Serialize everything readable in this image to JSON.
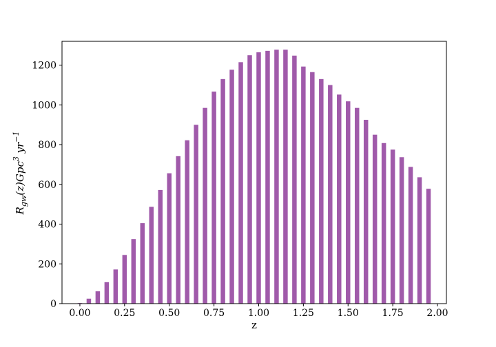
{
  "chart_data": {
    "type": "bar",
    "xlabel": "z",
    "ylabel": {
      "base": "R",
      "sub": "gw",
      "mid": "(z)Gpc",
      "sup1": "3",
      "unit": " yr",
      "sup2": "−1"
    },
    "x": [
      0.0,
      0.05,
      0.1,
      0.15,
      0.2,
      0.25,
      0.3,
      0.35,
      0.4,
      0.45,
      0.5,
      0.55,
      0.6,
      0.65,
      0.7,
      0.75,
      0.8,
      0.85,
      0.9,
      0.95,
      1.0,
      1.05,
      1.1,
      1.15,
      1.2,
      1.25,
      1.3,
      1.35,
      1.4,
      1.45,
      1.5,
      1.55,
      1.6,
      1.65,
      1.7,
      1.75,
      1.8,
      1.85,
      1.9,
      1.95
    ],
    "values": [
      3,
      25,
      62,
      108,
      172,
      245,
      325,
      405,
      487,
      572,
      656,
      742,
      822,
      900,
      985,
      1067,
      1130,
      1177,
      1215,
      1250,
      1265,
      1272,
      1278,
      1278,
      1248,
      1193,
      1165,
      1130,
      1100,
      1052,
      1018,
      985,
      925,
      850,
      808,
      775,
      737,
      688,
      636,
      578
    ],
    "bar_color": "#a05aaa",
    "xlim": [
      -0.1,
      2.05
    ],
    "ylim": [
      0,
      1320
    ],
    "xticks": [
      0.0,
      0.25,
      0.5,
      0.75,
      1.0,
      1.25,
      1.5,
      1.75,
      2.0
    ],
    "xtick_labels": [
      "0.00",
      "0.25",
      "0.50",
      "0.75",
      "1.00",
      "1.25",
      "1.50",
      "1.75",
      "2.00"
    ],
    "yticks": [
      0,
      200,
      400,
      600,
      800,
      1000,
      1200
    ],
    "ytick_labels": [
      "0",
      "200",
      "400",
      "600",
      "800",
      "1000",
      "1200"
    ],
    "grid": false
  }
}
